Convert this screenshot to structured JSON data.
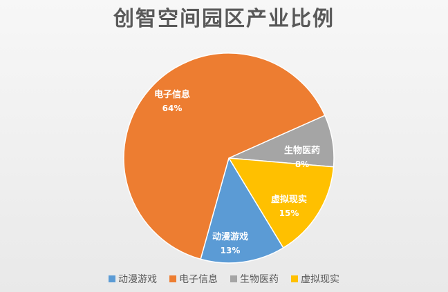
{
  "chart_data": {
    "type": "pie",
    "title": "创智空间园区产业比例",
    "categories": [
      "动漫游戏",
      "电子信息",
      "生物医药",
      "虚拟现实"
    ],
    "values": [
      13,
      64,
      8,
      15
    ],
    "labels": [
      "13%",
      "64%",
      "8%",
      "15%"
    ],
    "colors": [
      "#5B9BD5",
      "#ED7D31",
      "#A5A5A5",
      "#FFC000"
    ],
    "legend_position": "bottom"
  }
}
